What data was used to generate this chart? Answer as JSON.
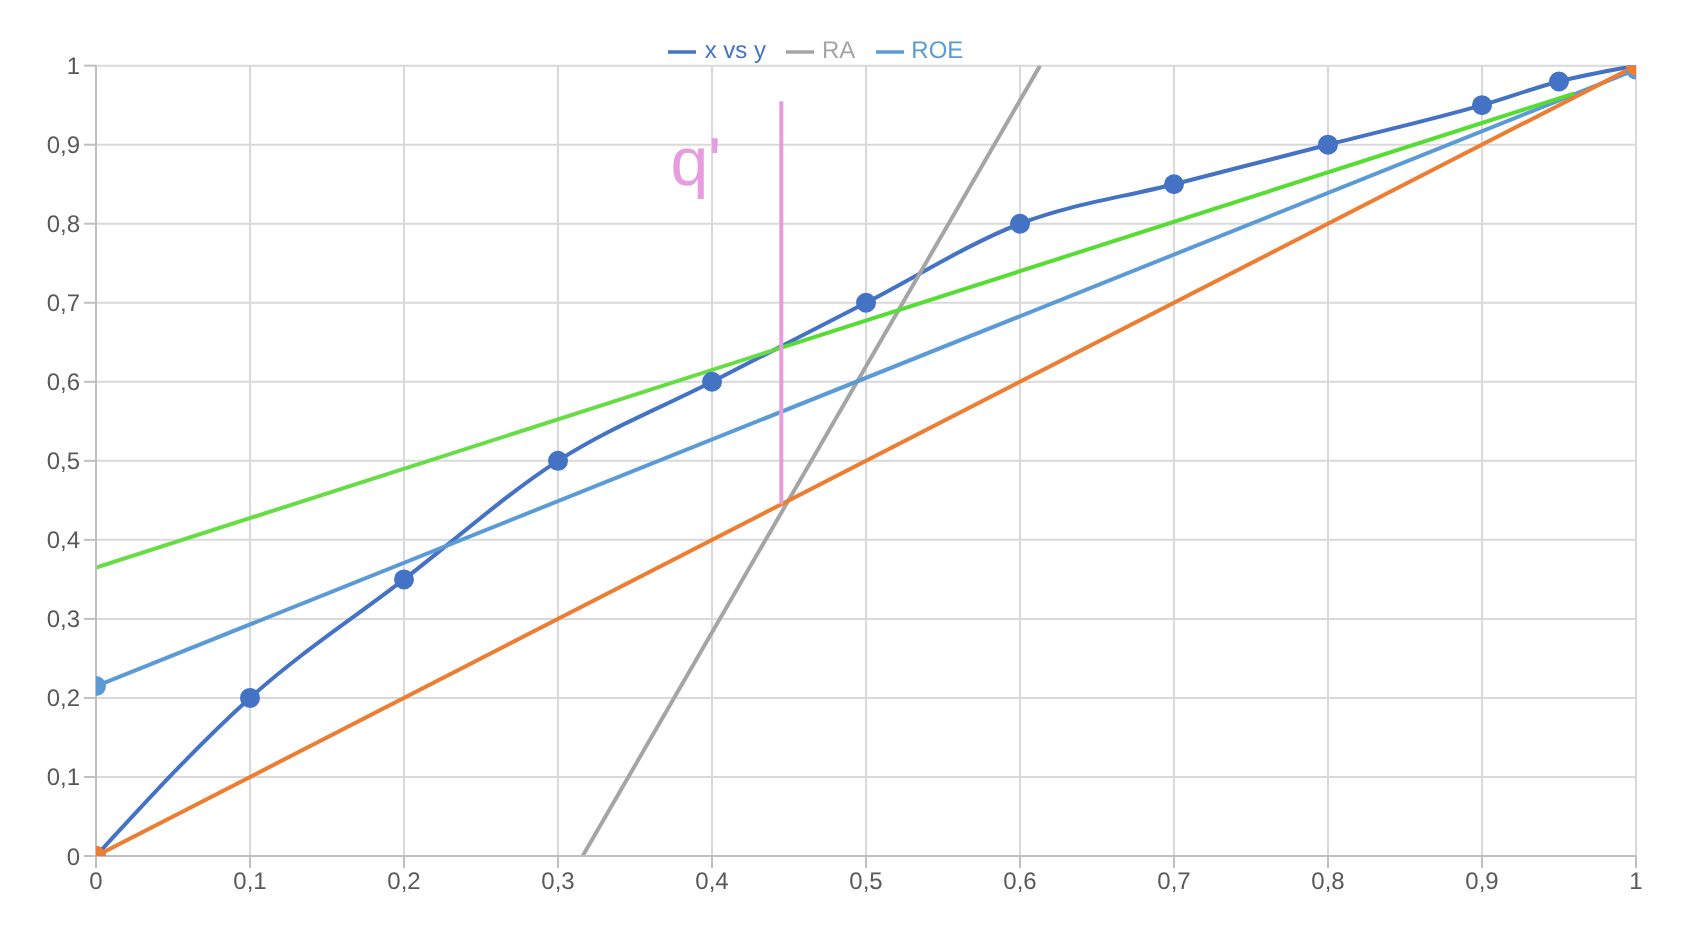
{
  "chart_data": {
    "type": "line",
    "xlim": [
      0,
      1
    ],
    "xticks": [
      0,
      {
        "value": 0.1,
        "label": "0,1"
      },
      {
        "value": 0.2,
        "label": "0,2"
      },
      {
        "value": 0.3,
        "label": "0,3"
      },
      {
        "value": 0.4,
        "label": "0,4"
      },
      {
        "value": 0.5,
        "label": "0,5"
      },
      {
        "value": 0.6,
        "label": "0,6"
      },
      {
        "value": 0.7,
        "label": "0,7"
      },
      {
        "value": 0.8,
        "label": "0,8"
      },
      {
        "value": 0.9,
        "label": "0,9"
      },
      1
    ],
    "ylim": [
      0,
      1
    ],
    "yticks": [
      0,
      {
        "value": 0.1,
        "label": "0,1"
      },
      {
        "value": 0.2,
        "label": "0,2"
      },
      {
        "value": 0.3,
        "label": "0,3"
      },
      {
        "value": 0.4,
        "label": "0,4"
      },
      {
        "value": 0.5,
        "label": "0,5"
      },
      {
        "value": 0.6,
        "label": "0,6"
      },
      {
        "value": 0.7,
        "label": "0,7"
      },
      {
        "value": 0.8,
        "label": "0,8"
      },
      {
        "value": 0.9,
        "label": "0,9"
      },
      1
    ],
    "grid": true,
    "legend": "top",
    "series": [
      {
        "name": "x vs y",
        "color": "#4472c4",
        "marker": "circle",
        "x": [
          0,
          0.1,
          0.2,
          0.3,
          0.4,
          0.5,
          0.6,
          0.7,
          0.8,
          0.9,
          0.95,
          1
        ],
        "values": [
          0,
          0.2,
          0.35,
          0.5,
          0.6,
          0.7,
          0.8,
          0.85,
          0.9,
          0.95,
          0.98,
          1
        ]
      },
      {
        "name": "RA",
        "color": "#a5a5a5",
        "marker": "none",
        "x": [
          0.316,
          0.613
        ],
        "values": [
          0,
          1
        ]
      },
      {
        "name": "ROE",
        "color": "#5b9bd5",
        "marker": "circle",
        "x": [
          0,
          1
        ],
        "values": [
          0.215,
          0.995
        ]
      },
      {
        "color": "#ed7d31",
        "marker": "circle",
        "x": [
          0,
          1
        ],
        "values": [
          0,
          1
        ]
      },
      {
        "color": "#66dd44",
        "marker": "none",
        "x": [
          0,
          0.44
        ],
        "values": [
          0.365,
          0.64
        ]
      },
      {
        "color": "#55dd33",
        "marker": "none",
        "x": [
          0.44,
          0.96
        ],
        "values": [
          0.64,
          0.965
        ]
      },
      {
        "color": "#e89ce0",
        "marker": "none",
        "x": [
          0.445,
          0.445
        ],
        "values": [
          0.445,
          0.955
        ]
      }
    ],
    "annotations": [
      {
        "text": "q'",
        "x": 0.445,
        "y": 0.88
      }
    ]
  }
}
